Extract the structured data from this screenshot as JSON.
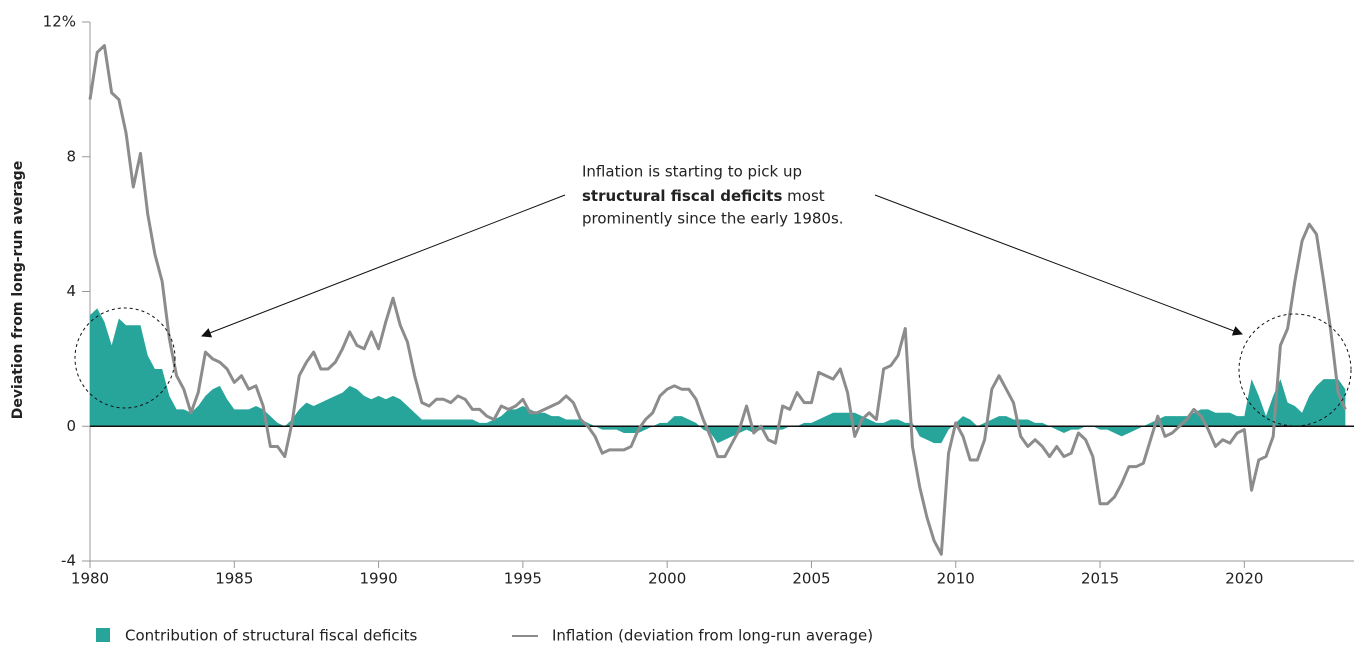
{
  "chart_data": {
    "type": "area-line",
    "ylabel": "Deviation from long-run average",
    "annotation": {
      "line1": "Inflation is starting to pick up",
      "bold": "structural fiscal deficits",
      "rest": " most",
      "line3": "prominently since the early 1980s."
    },
    "xlim": [
      1980,
      2023.8
    ],
    "xticks": [
      1980,
      1985,
      1990,
      1995,
      2000,
      2005,
      2010,
      2015,
      2020
    ],
    "ylim": [
      -4,
      12
    ],
    "yticks": [
      -4,
      0,
      4,
      8,
      {
        "value": 12,
        "label": "12%"
      }
    ],
    "x": [
      1980,
      1980.25,
      1980.5,
      1980.75,
      1981,
      1981.25,
      1981.5,
      1981.75,
      1982,
      1982.25,
      1982.5,
      1982.75,
      1983,
      1983.25,
      1983.5,
      1983.75,
      1984,
      1984.25,
      1984.5,
      1984.75,
      1985,
      1985.25,
      1985.5,
      1985.75,
      1986,
      1986.25,
      1986.5,
      1986.75,
      1987,
      1987.25,
      1987.5,
      1987.75,
      1988,
      1988.25,
      1988.5,
      1988.75,
      1989,
      1989.25,
      1989.5,
      1989.75,
      1990,
      1990.25,
      1990.5,
      1990.75,
      1991,
      1991.25,
      1991.5,
      1991.75,
      1992,
      1992.25,
      1992.5,
      1992.75,
      1993,
      1993.25,
      1993.5,
      1993.75,
      1994,
      1994.25,
      1994.5,
      1994.75,
      1995,
      1995.25,
      1995.5,
      1995.75,
      1996,
      1996.25,
      1996.5,
      1996.75,
      1997,
      1997.25,
      1997.5,
      1997.75,
      1998,
      1998.25,
      1998.5,
      1998.75,
      1999,
      1999.25,
      1999.5,
      1999.75,
      2000,
      2000.25,
      2000.5,
      2000.75,
      2001,
      2001.25,
      2001.5,
      2001.75,
      2002,
      2002.25,
      2002.5,
      2002.75,
      2003,
      2003.25,
      2003.5,
      2003.75,
      2004,
      2004.25,
      2004.5,
      2004.75,
      2005,
      2005.25,
      2005.5,
      2005.75,
      2006,
      2006.25,
      2006.5,
      2006.75,
      2007,
      2007.25,
      2007.5,
      2007.75,
      2008,
      2008.25,
      2008.5,
      2008.75,
      2009,
      2009.25,
      2009.5,
      2009.75,
      2010,
      2010.25,
      2010.5,
      2010.75,
      2011,
      2011.25,
      2011.5,
      2011.75,
      2012,
      2012.25,
      2012.5,
      2012.75,
      2013,
      2013.25,
      2013.5,
      2013.75,
      2014,
      2014.25,
      2014.5,
      2014.75,
      2015,
      2015.25,
      2015.5,
      2015.75,
      2016,
      2016.25,
      2016.5,
      2016.75,
      2017,
      2017.25,
      2017.5,
      2017.75,
      2018,
      2018.25,
      2018.5,
      2018.75,
      2019,
      2019.25,
      2019.5,
      2019.75,
      2020,
      2020.25,
      2020.5,
      2020.75,
      2021,
      2021.25,
      2021.5,
      2021.75,
      2022,
      2022.25,
      2022.5,
      2022.75,
      2023,
      2023.25,
      2023.5
    ],
    "series": [
      {
        "name": "Contribution of structural fiscal deficits",
        "color": "#27a59b",
        "kind": "area",
        "values": [
          3.3,
          3.5,
          3.1,
          2.4,
          3.2,
          3.0,
          3.0,
          3.0,
          2.1,
          1.7,
          1.7,
          0.9,
          0.5,
          0.5,
          0.4,
          0.6,
          0.9,
          1.1,
          1.2,
          0.8,
          0.5,
          0.5,
          0.5,
          0.6,
          0.5,
          0.3,
          0.1,
          0.0,
          0.2,
          0.5,
          0.7,
          0.6,
          0.7,
          0.8,
          0.9,
          1.0,
          1.2,
          1.1,
          0.9,
          0.8,
          0.9,
          0.8,
          0.9,
          0.8,
          0.6,
          0.4,
          0.2,
          0.2,
          0.2,
          0.2,
          0.2,
          0.2,
          0.2,
          0.2,
          0.1,
          0.1,
          0.2,
          0.3,
          0.5,
          0.5,
          0.6,
          0.5,
          0.4,
          0.4,
          0.3,
          0.3,
          0.2,
          0.2,
          0.2,
          0.1,
          0.0,
          -0.1,
          -0.1,
          -0.1,
          -0.2,
          -0.2,
          -0.2,
          -0.1,
          0.0,
          0.1,
          0.1,
          0.3,
          0.3,
          0.2,
          0.1,
          -0.1,
          -0.2,
          -0.5,
          -0.4,
          -0.3,
          -0.2,
          -0.1,
          -0.2,
          -0.1,
          -0.1,
          -0.1,
          -0.1,
          0.0,
          0.0,
          0.1,
          0.1,
          0.2,
          0.3,
          0.4,
          0.4,
          0.4,
          0.4,
          0.3,
          0.2,
          0.1,
          0.1,
          0.2,
          0.2,
          0.1,
          0.1,
          -0.3,
          -0.4,
          -0.5,
          -0.5,
          -0.1,
          0.1,
          0.3,
          0.2,
          0.0,
          0.1,
          0.2,
          0.3,
          0.3,
          0.2,
          0.2,
          0.2,
          0.1,
          0.1,
          0.0,
          -0.1,
          -0.2,
          -0.1,
          -0.1,
          0.0,
          0.0,
          -0.1,
          -0.1,
          -0.2,
          -0.3,
          -0.2,
          -0.1,
          0.0,
          0.1,
          0.2,
          0.3,
          0.3,
          0.3,
          0.3,
          0.4,
          0.5,
          0.5,
          0.4,
          0.4,
          0.4,
          0.3,
          0.3,
          1.4,
          0.9,
          0.3,
          0.9,
          1.4,
          0.7,
          0.6,
          0.4,
          0.9,
          1.2,
          1.4,
          1.4,
          1.4,
          1.1
        ]
      },
      {
        "name": "Inflation (deviation from long-run average)",
        "color": "#8c8c8c",
        "kind": "line",
        "values": [
          9.7,
          11.1,
          11.3,
          9.9,
          9.7,
          8.7,
          7.1,
          8.1,
          6.3,
          5.1,
          4.3,
          2.6,
          1.5,
          1.1,
          0.4,
          1.0,
          2.2,
          2.0,
          1.9,
          1.7,
          1.3,
          1.5,
          1.1,
          1.2,
          0.6,
          -0.6,
          -0.6,
          -0.9,
          0.1,
          1.5,
          1.9,
          2.2,
          1.7,
          1.7,
          1.9,
          2.3,
          2.8,
          2.4,
          2.3,
          2.8,
          2.3,
          3.1,
          3.8,
          3.0,
          2.5,
          1.5,
          0.7,
          0.6,
          0.8,
          0.8,
          0.7,
          0.9,
          0.8,
          0.5,
          0.5,
          0.3,
          0.2,
          0.6,
          0.5,
          0.6,
          0.8,
          0.4,
          0.4,
          0.5,
          0.6,
          0.7,
          0.9,
          0.7,
          0.2,
          0.0,
          -0.3,
          -0.8,
          -0.7,
          -0.7,
          -0.7,
          -0.6,
          -0.1,
          0.2,
          0.4,
          0.9,
          1.1,
          1.2,
          1.1,
          1.1,
          0.8,
          0.2,
          -0.3,
          -0.9,
          -0.9,
          -0.5,
          -0.1,
          0.6,
          -0.2,
          0.0,
          -0.4,
          -0.5,
          0.6,
          0.5,
          1.0,
          0.7,
          0.7,
          1.6,
          1.5,
          1.4,
          1.7,
          1.0,
          -0.3,
          0.2,
          0.4,
          0.2,
          1.7,
          1.8,
          2.1,
          2.9,
          -0.6,
          -1.8,
          -2.7,
          -3.4,
          -3.8,
          -0.8,
          0.1,
          -0.3,
          -1.0,
          -1.0,
          -0.4,
          1.1,
          1.5,
          1.1,
          0.7,
          -0.3,
          -0.6,
          -0.4,
          -0.6,
          -0.9,
          -0.6,
          -0.9,
          -0.8,
          -0.2,
          -0.4,
          -0.9,
          -2.3,
          -2.3,
          -2.1,
          -1.7,
          -1.2,
          -1.2,
          -1.1,
          -0.4,
          0.3,
          -0.3,
          -0.2,
          0.0,
          0.2,
          0.5,
          0.3,
          -0.1,
          -0.6,
          -0.4,
          -0.5,
          -0.2,
          -0.1,
          -1.9,
          -1.0,
          -0.9,
          -0.3,
          2.4,
          2.9,
          4.3,
          5.5,
          6.0,
          5.7,
          4.3,
          2.8,
          1.0,
          0.5
        ]
      }
    ]
  }
}
